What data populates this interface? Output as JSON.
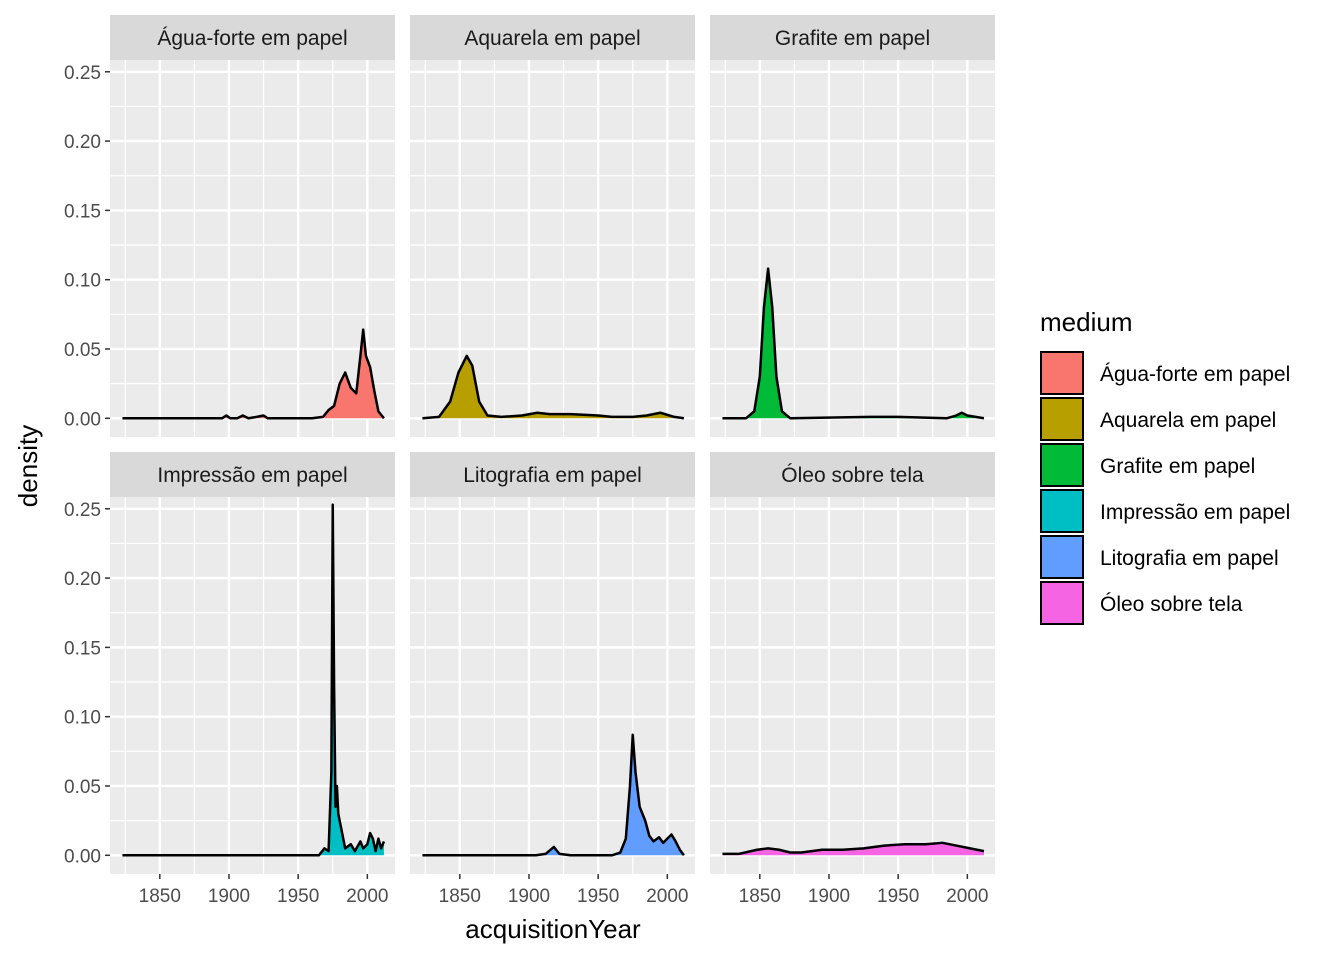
{
  "chart_data": {
    "type": "area",
    "xlabel": "acquisitionYear",
    "ylabel": "density",
    "xlim": [
      1814,
      2020
    ],
    "ylim": [
      -0.0135,
      0.2585
    ],
    "x_ticks": [
      1850,
      1900,
      1950,
      2000
    ],
    "x_tick_labels": [
      "1850",
      "1900",
      "1950",
      "2000"
    ],
    "y_ticks": [
      0,
      0.05,
      0.1,
      0.15,
      0.2,
      0.25
    ],
    "y_tick_labels": [
      "0.00",
      "0.05",
      "0.10",
      "0.15",
      "0.20",
      "0.25"
    ],
    "grid": true,
    "legend": {
      "title": "medium",
      "position": "right",
      "entries": [
        {
          "label": "Água-forte em papel",
          "color": "#F8766D"
        },
        {
          "label": "Aquarela em papel",
          "color": "#B79F00"
        },
        {
          "label": "Grafite em papel",
          "color": "#00BA38"
        },
        {
          "label": "Impressão em papel",
          "color": "#00BFC4"
        },
        {
          "label": "Litografia em papel",
          "color": "#619CFF"
        },
        {
          "label": "Óleo sobre tela",
          "color": "#F564E3"
        }
      ]
    },
    "panels": [
      {
        "title": "Água-forte em papel",
        "color": "#F8766D",
        "points": [
          [
            1823,
            0
          ],
          [
            1895,
            0
          ],
          [
            1898,
            0.002
          ],
          [
            1901,
            0
          ],
          [
            1906,
            0
          ],
          [
            1910,
            0.002
          ],
          [
            1914,
            0
          ],
          [
            1920,
            0.001
          ],
          [
            1925,
            0.002
          ],
          [
            1928,
            0
          ],
          [
            1960,
            0
          ],
          [
            1968,
            0.001
          ],
          [
            1972,
            0.006
          ],
          [
            1976,
            0.009
          ],
          [
            1980,
            0.025
          ],
          [
            1984,
            0.033
          ],
          [
            1988,
            0.022
          ],
          [
            1992,
            0.018
          ],
          [
            1995,
            0.045
          ],
          [
            1997,
            0.064
          ],
          [
            1999,
            0.045
          ],
          [
            2002,
            0.037
          ],
          [
            2005,
            0.02
          ],
          [
            2008,
            0.005
          ],
          [
            2012,
            0
          ]
        ]
      },
      {
        "title": "Aquarela em papel",
        "color": "#B79F00",
        "points": [
          [
            1823,
            0
          ],
          [
            1835,
            0.001
          ],
          [
            1843,
            0.012
          ],
          [
            1849,
            0.033
          ],
          [
            1855,
            0.045
          ],
          [
            1859,
            0.038
          ],
          [
            1864,
            0.012
          ],
          [
            1870,
            0.002
          ],
          [
            1880,
            0.001
          ],
          [
            1895,
            0.002
          ],
          [
            1906,
            0.004
          ],
          [
            1915,
            0.003
          ],
          [
            1930,
            0.003
          ],
          [
            1950,
            0.002
          ],
          [
            1960,
            0.001
          ],
          [
            1975,
            0.001
          ],
          [
            1985,
            0.002
          ],
          [
            1995,
            0.004
          ],
          [
            2005,
            0.001
          ],
          [
            2012,
            0
          ]
        ]
      },
      {
        "title": "Grafite em papel",
        "color": "#00BA38",
        "points": [
          [
            1823,
            0
          ],
          [
            1840,
            0
          ],
          [
            1846,
            0.005
          ],
          [
            1850,
            0.03
          ],
          [
            1853,
            0.08
          ],
          [
            1856,
            0.108
          ],
          [
            1859,
            0.08
          ],
          [
            1862,
            0.03
          ],
          [
            1866,
            0.005
          ],
          [
            1872,
            0
          ],
          [
            1930,
            0.001
          ],
          [
            1950,
            0.001
          ],
          [
            1985,
            0
          ],
          [
            1992,
            0.002
          ],
          [
            1996,
            0.004
          ],
          [
            2000,
            0.002
          ],
          [
            2012,
            0
          ]
        ]
      },
      {
        "title": "Impressão em papel",
        "color": "#00BFC4",
        "points": [
          [
            1823,
            0
          ],
          [
            1965,
            0
          ],
          [
            1969,
            0.005
          ],
          [
            1972,
            0.003
          ],
          [
            1974,
            0.06
          ],
          [
            1975,
            0.253
          ],
          [
            1976,
            0.12
          ],
          [
            1977,
            0.035
          ],
          [
            1978,
            0.05
          ],
          [
            1979,
            0.03
          ],
          [
            1981,
            0.02
          ],
          [
            1984,
            0.005
          ],
          [
            1988,
            0.008
          ],
          [
            1991,
            0.003
          ],
          [
            1995,
            0.01
          ],
          [
            1997,
            0.005
          ],
          [
            2000,
            0.008
          ],
          [
            2002,
            0.016
          ],
          [
            2004,
            0.012
          ],
          [
            2006,
            0.003
          ],
          [
            2008,
            0.012
          ],
          [
            2010,
            0.005
          ],
          [
            2012,
            0.01
          ]
        ]
      },
      {
        "title": "Litografia em papel",
        "color": "#619CFF",
        "points": [
          [
            1823,
            0
          ],
          [
            1905,
            0
          ],
          [
            1912,
            0.001
          ],
          [
            1918,
            0.006
          ],
          [
            1922,
            0.001
          ],
          [
            1930,
            0
          ],
          [
            1960,
            0
          ],
          [
            1966,
            0.002
          ],
          [
            1970,
            0.012
          ],
          [
            1973,
            0.05
          ],
          [
            1975,
            0.087
          ],
          [
            1977,
            0.06
          ],
          [
            1980,
            0.035
          ],
          [
            1984,
            0.025
          ],
          [
            1987,
            0.014
          ],
          [
            1990,
            0.01
          ],
          [
            1994,
            0.013
          ],
          [
            1997,
            0.009
          ],
          [
            2000,
            0.012
          ],
          [
            2003,
            0.015
          ],
          [
            2006,
            0.01
          ],
          [
            2009,
            0.004
          ],
          [
            2012,
            0
          ]
        ]
      },
      {
        "title": "Óleo sobre tela",
        "color": "#F564E3",
        "points": [
          [
            1823,
            0.001
          ],
          [
            1835,
            0.001
          ],
          [
            1848,
            0.004
          ],
          [
            1856,
            0.005
          ],
          [
            1864,
            0.004
          ],
          [
            1872,
            0.002
          ],
          [
            1880,
            0.002
          ],
          [
            1895,
            0.004
          ],
          [
            1910,
            0.004
          ],
          [
            1925,
            0.005
          ],
          [
            1940,
            0.007
          ],
          [
            1955,
            0.008
          ],
          [
            1970,
            0.008
          ],
          [
            1982,
            0.009
          ],
          [
            1992,
            0.007
          ],
          [
            2002,
            0.005
          ],
          [
            2012,
            0.003
          ]
        ]
      }
    ]
  }
}
